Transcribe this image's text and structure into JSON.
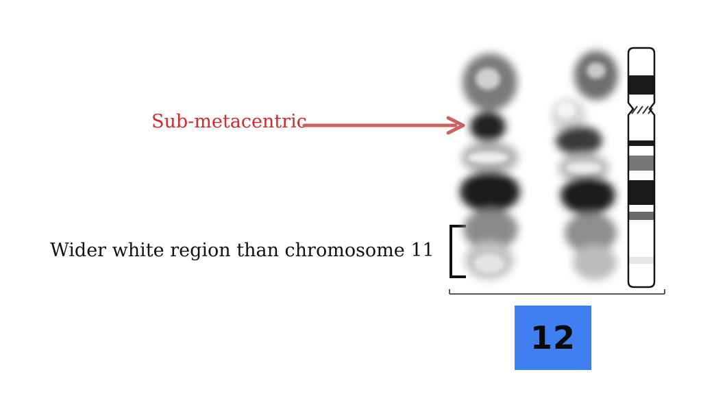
{
  "annotations": {
    "sub_metacentric": "Sub-metacentric",
    "wider_region": "Wider white region than chromosome 11"
  },
  "chromosome_number": "12",
  "colors": {
    "annotation_red": "#d42a2a",
    "arrow": "#c9635e",
    "number_box": "#3f7ff2",
    "text_dark": "#111111"
  },
  "icons": {
    "arrow": "right-arrow-icon",
    "bracket": "left-bracket-icon"
  }
}
